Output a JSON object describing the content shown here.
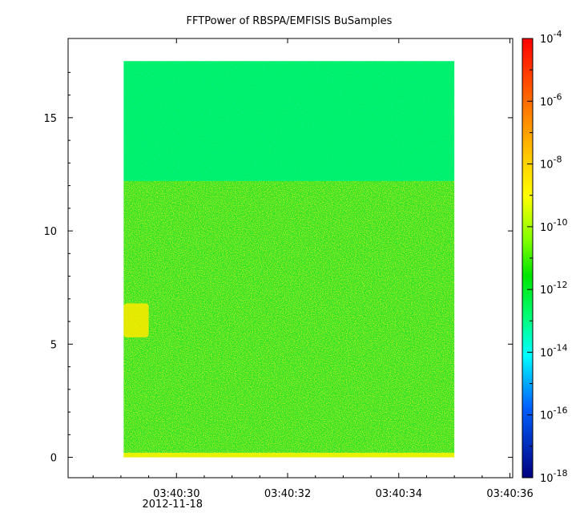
{
  "chart_data": {
    "type": "heatmap",
    "title": "FFTPower of RBSPA/EMFISIS  BuSamples",
    "xlabel": "",
    "ylabel": "",
    "x_ticks": [
      {
        "label": "03:40:30",
        "sublabel": "2012-11-18",
        "value": 30
      },
      {
        "label": "03:40:32",
        "sublabel": "",
        "value": 32
      },
      {
        "label": "03:40:34",
        "sublabel": "",
        "value": 34
      },
      {
        "label": "03:40:36",
        "sublabel": "",
        "value": 36
      }
    ],
    "x_range_seconds": [
      28.05,
      36.05
    ],
    "data_x_range_seconds": [
      29.05,
      35.0
    ],
    "y_ticks": [
      {
        "label": "0",
        "value": 0
      },
      {
        "label": "5",
        "value": 5
      },
      {
        "label": "10",
        "value": 10
      },
      {
        "label": "15",
        "value": 15
      }
    ],
    "ylim": [
      -0.9,
      18.5
    ],
    "data_y_range": [
      0,
      17.5
    ],
    "colorbar": {
      "scale": "log",
      "range_exponent": [
        -18,
        -4
      ],
      "tick_labels": [
        {
          "base": "10",
          "exp": "-4",
          "value": -4
        },
        {
          "base": "10",
          "exp": "-6",
          "value": -6
        },
        {
          "base": "10",
          "exp": "-8",
          "value": -8
        },
        {
          "base": "10",
          "exp": "-10",
          "value": -10
        },
        {
          "base": "10",
          "exp": "-12",
          "value": -12
        },
        {
          "base": "10",
          "exp": "-14",
          "value": -14
        },
        {
          "base": "10",
          "exp": "-16",
          "value": -16
        },
        {
          "base": "10",
          "exp": "-18",
          "value": -18
        }
      ],
      "stops": [
        {
          "offset": 0.0,
          "color": "#ff0000"
        },
        {
          "offset": 0.14,
          "color": "#ff6a00"
        },
        {
          "offset": 0.28,
          "color": "#ffd000"
        },
        {
          "offset": 0.36,
          "color": "#ffff00"
        },
        {
          "offset": 0.46,
          "color": "#7fff00"
        },
        {
          "offset": 0.54,
          "color": "#00e600"
        },
        {
          "offset": 0.64,
          "color": "#00ff80"
        },
        {
          "offset": 0.72,
          "color": "#00ffff"
        },
        {
          "offset": 0.84,
          "color": "#0060ff"
        },
        {
          "offset": 1.0,
          "color": "#000080"
        }
      ]
    },
    "regions": [
      {
        "name": "upper-band",
        "y_range": [
          12.2,
          17.5
        ],
        "x_range": [
          29.05,
          35.0
        ],
        "log10_power": -11.8,
        "color": "#00f06a"
      },
      {
        "name": "lower-band",
        "y_range": [
          0.2,
          12.2
        ],
        "x_range": [
          29.05,
          35.0
        ],
        "log10_power": -10.5,
        "color": "#2ee22a"
      },
      {
        "name": "bottom-edge",
        "y_range": [
          0,
          0.2
        ],
        "x_range": [
          29.05,
          35.0
        ],
        "log10_power": -8.5,
        "color": "#e6f000"
      },
      {
        "name": "burst",
        "y_range": [
          5.3,
          6.8
        ],
        "x_range": [
          29.05,
          29.5
        ],
        "log10_power": -8.5,
        "color": "#f0e800"
      }
    ]
  }
}
